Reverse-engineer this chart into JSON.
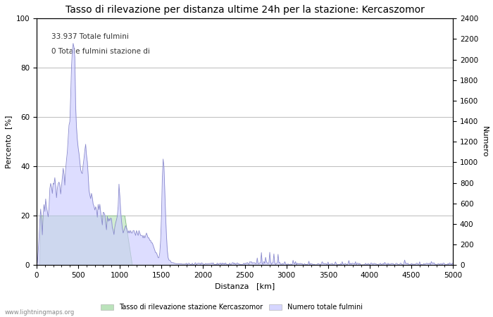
{
  "title": "Tasso di rilevazione per distanza ultime 24h per la stazione: Kercaszomor",
  "xlabel": "Distanza   [km]",
  "ylabel_left": "Percento  [%]",
  "ylabel_right": "Numero",
  "annotation_line1": "33.937 Totale fulmini",
  "annotation_line2": "0 Totale fulmini stazione di",
  "xlim": [
    0,
    5000
  ],
  "ylim_left": [
    0,
    100
  ],
  "ylim_right": [
    0,
    2400
  ],
  "xticks": [
    0,
    500,
    1000,
    1500,
    2000,
    2500,
    3000,
    3500,
    4000,
    4500,
    5000
  ],
  "yticks_left": [
    0,
    20,
    40,
    60,
    80,
    100
  ],
  "yticks_right": [
    0,
    200,
    400,
    600,
    800,
    1000,
    1200,
    1400,
    1600,
    1800,
    2000,
    2200,
    2400
  ],
  "legend_label_green": "Tasso di rilevazione stazione Kercaszomor",
  "legend_label_blue": "Numero totale fulmini",
  "fill_green_color": "#aaddaa",
  "fill_blue_color": "#ccccff",
  "line_blue_color": "#8888cc",
  "line_green_color": "#88bb88",
  "background_color": "#ffffff",
  "grid_color": "#bbbbbb",
  "watermark": "www.lightningmaps.org",
  "title_fontsize": 10,
  "axis_fontsize": 8,
  "tick_fontsize": 7.5,
  "annotation_fontsize": 7.5
}
